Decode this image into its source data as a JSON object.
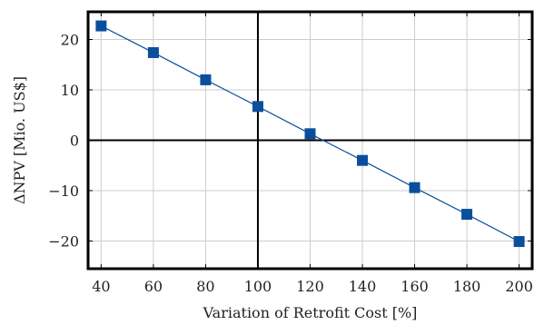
{
  "chart_data": {
    "type": "line",
    "xlabel": "Variation of Retrofit Cost [%]",
    "ylabel": "ΔNPV [Mio. US$]",
    "xlim": [
      35,
      205
    ],
    "ylim": [
      -25.5,
      25.5
    ],
    "x_ticks": [
      40,
      60,
      80,
      100,
      120,
      140,
      160,
      180,
      200
    ],
    "x_tick_labels": [
      "40",
      "60",
      "80",
      "100",
      "120",
      "140",
      "160",
      "180",
      "200"
    ],
    "y_ticks": [
      -20,
      -10,
      0,
      10,
      20
    ],
    "y_tick_labels": [
      "−20",
      "−10",
      "0",
      "10",
      "20"
    ],
    "grid": true,
    "reference_lines": {
      "x": 100,
      "y": 0
    },
    "series": [
      {
        "color": "#0b4f9c",
        "marker": "square",
        "x": [
          40,
          60,
          80,
          100,
          120,
          140,
          160,
          180,
          200
        ],
        "y": [
          22.7,
          17.4,
          12.0,
          6.7,
          1.3,
          -4.0,
          -9.4,
          -14.7,
          -20.1
        ]
      }
    ]
  }
}
